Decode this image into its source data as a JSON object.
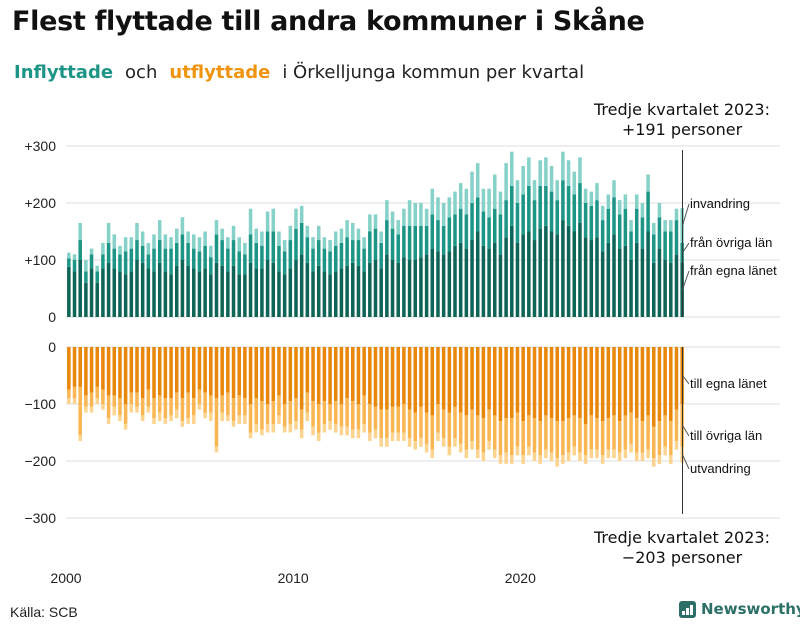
{
  "title": "Flest flyttade till andra kommuner i Skåne",
  "subtitle": {
    "in_word": "Inflyttade",
    "and": "och",
    "out_word": "utflyttade",
    "rest": "i Örkelljunga  kommun  per  kvartal"
  },
  "source": "Källa: SCB",
  "brand": "Newsworthy",
  "colors": {
    "in_own": "#0e6457",
    "in_other": "#1d9586",
    "in_immig": "#86d1c8",
    "out_own": "#e8870a",
    "out_other": "#f9b653",
    "out_emig": "#fcd490",
    "grid": "#dddddd"
  },
  "chart_data": {
    "type": "bar",
    "stacked": true,
    "diverging": true,
    "x_start": "2000 Q1",
    "x_ticks": [
      "2000",
      "2010",
      "2020"
    ],
    "top_panel": {
      "y_ticks": [
        "+300",
        "+200",
        "+100",
        "0"
      ],
      "ylim": [
        0,
        300
      ],
      "annotation": [
        "Tredje kvartalet 2023:",
        "+191 personer"
      ],
      "series": [
        {
          "name": "från egna länet",
          "values": [
            88,
            80,
            100,
            60,
            85,
            60,
            85,
            95,
            85,
            80,
            75,
            80,
            100,
            95,
            85,
            80,
            95,
            80,
            75,
            90,
            100,
            90,
            85,
            80,
            85,
            75,
            95,
            90,
            80,
            90,
            75,
            75,
            95,
            85,
            85,
            100,
            95,
            80,
            75,
            85,
            100,
            110,
            95,
            80,
            90,
            80,
            75,
            80,
            85,
            90,
            95,
            90,
            80,
            95,
            100,
            85,
            110,
            100,
            95,
            105,
            100,
            100,
            105,
            110,
            120,
            115,
            110,
            115,
            125,
            130,
            120,
            135,
            150,
            125,
            120,
            130,
            110,
            140,
            160,
            130,
            145,
            150,
            135,
            155,
            160,
            150,
            145,
            170,
            160,
            150,
            165,
            140,
            135,
            140,
            115,
            130,
            145,
            120,
            125,
            100,
            130,
            120,
            150,
            95,
            120,
            100,
            95,
            110,
            96
          ]
        },
        {
          "name": "från övriga län",
          "values": [
            15,
            20,
            35,
            20,
            25,
            20,
            25,
            35,
            35,
            30,
            40,
            40,
            35,
            30,
            25,
            40,
            40,
            40,
            45,
            40,
            45,
            40,
            35,
            35,
            40,
            30,
            50,
            45,
            40,
            45,
            40,
            35,
            50,
            45,
            40,
            50,
            55,
            45,
            40,
            50,
            55,
            55,
            45,
            40,
            45,
            40,
            40,
            45,
            45,
            50,
            40,
            45,
            40,
            55,
            55,
            45,
            60,
            55,
            50,
            55,
            60,
            60,
            55,
            50,
            60,
            55,
            50,
            60,
            55,
            60,
            60,
            65,
            60,
            60,
            55,
            60,
            70,
            65,
            70,
            70,
            70,
            80,
            70,
            75,
            70,
            70,
            60,
            70,
            70,
            65,
            70,
            60,
            60,
            65,
            55,
            60,
            65,
            60,
            65,
            50,
            60,
            55,
            70,
            50,
            55,
            50,
            55,
            60,
            34
          ]
        },
        {
          "name": "invandring",
          "values": [
            10,
            10,
            30,
            20,
            10,
            10,
            20,
            35,
            25,
            15,
            25,
            20,
            30,
            25,
            20,
            25,
            35,
            25,
            20,
            25,
            30,
            20,
            25,
            25,
            25,
            20,
            25,
            20,
            20,
            25,
            25,
            20,
            45,
            25,
            25,
            35,
            40,
            25,
            20,
            25,
            35,
            30,
            20,
            20,
            25,
            20,
            20,
            25,
            25,
            30,
            30,
            20,
            20,
            30,
            25,
            20,
            35,
            30,
            25,
            30,
            45,
            40,
            40,
            30,
            45,
            40,
            40,
            35,
            40,
            45,
            45,
            55,
            60,
            40,
            50,
            60,
            40,
            65,
            60,
            40,
            50,
            50,
            35,
            45,
            50,
            45,
            35,
            50,
            45,
            40,
            45,
            25,
            25,
            30,
            25,
            25,
            30,
            25,
            25,
            20,
            25,
            25,
            30,
            20,
            25,
            20,
            20,
            20,
            61
          ]
        }
      ]
    },
    "bottom_panel": {
      "y_ticks": [
        "0",
        "−100",
        "−200",
        "−300"
      ],
      "ylim": [
        -300,
        0
      ],
      "annotation": [
        "Tredje kvartalet 2023:",
        "−203 personer"
      ],
      "series": [
        {
          "name": "till egna länet",
          "values": [
            -75,
            -70,
            -70,
            -85,
            -80,
            -70,
            -75,
            -85,
            -85,
            -90,
            -100,
            -80,
            -80,
            -90,
            -75,
            -90,
            -85,
            -90,
            -90,
            -80,
            -90,
            -80,
            -90,
            -75,
            -80,
            -85,
            -90,
            -85,
            -80,
            -90,
            -85,
            -90,
            -100,
            -90,
            -95,
            -100,
            -95,
            -85,
            -100,
            -95,
            -90,
            -110,
            -80,
            -95,
            -100,
            -95,
            -100,
            -95,
            -100,
            -90,
            -95,
            -100,
            -85,
            -100,
            -105,
            -110,
            -110,
            -105,
            -105,
            -100,
            -110,
            -115,
            -105,
            -115,
            -120,
            -100,
            -110,
            -115,
            -105,
            -115,
            -120,
            -110,
            -120,
            -125,
            -110,
            -120,
            -130,
            -125,
            -125,
            -115,
            -130,
            -120,
            -125,
            -130,
            -120,
            -125,
            -130,
            -130,
            -125,
            -120,
            -125,
            -135,
            -120,
            -125,
            -130,
            -125,
            -120,
            -130,
            -120,
            -115,
            -125,
            -130,
            -120,
            -140,
            -130,
            -120,
            -130,
            -110,
            -100
          ]
        },
        {
          "name": "till övriga län",
          "values": [
            -15,
            -20,
            -85,
            -20,
            -25,
            -20,
            -25,
            -40,
            -20,
            -30,
            -35,
            -20,
            -25,
            -30,
            -30,
            -35,
            -30,
            -35,
            -30,
            -30,
            -40,
            -45,
            -30,
            -25,
            -35,
            -30,
            -85,
            -30,
            -40,
            -40,
            -35,
            -30,
            -50,
            -45,
            -50,
            -35,
            -40,
            -35,
            -40,
            -40,
            -40,
            -35,
            -35,
            -45,
            -50,
            -40,
            -30,
            -40,
            -40,
            -50,
            -50,
            -45,
            -50,
            -50,
            -40,
            -50,
            -50,
            -45,
            -45,
            -50,
            -50,
            -50,
            -55,
            -55,
            -60,
            -50,
            -50,
            -60,
            -55,
            -55,
            -60,
            -55,
            -60,
            -60,
            -55,
            -60,
            -60,
            -60,
            -65,
            -60,
            -60,
            -55,
            -60,
            -60,
            -60,
            -60,
            -65,
            -60,
            -60,
            -55,
            -60,
            -55,
            -60,
            -55,
            -60,
            -55,
            -60,
            -55,
            -60,
            -55,
            -60,
            -55,
            -60,
            -55,
            -60,
            -55,
            -60,
            -55,
            -75
          ]
        },
        {
          "name": "utvandring",
          "values": [
            -10,
            -10,
            -10,
            -10,
            -10,
            -10,
            -10,
            -10,
            -15,
            -10,
            -10,
            -15,
            -10,
            -10,
            -10,
            -10,
            -15,
            -10,
            -10,
            -15,
            -10,
            -10,
            -15,
            -10,
            -10,
            -15,
            -10,
            -15,
            -10,
            -10,
            -15,
            -15,
            -10,
            -15,
            -10,
            -15,
            -15,
            -15,
            -10,
            -15,
            -15,
            -15,
            -15,
            -15,
            -15,
            -15,
            -15,
            -15,
            -15,
            -15,
            -15,
            -15,
            -15,
            -15,
            -15,
            -15,
            -15,
            -15,
            -15,
            -15,
            -15,
            -15,
            -15,
            -15,
            -15,
            -15,
            -15,
            -15,
            -15,
            -15,
            -15,
            -15,
            -15,
            -15,
            -15,
            -15,
            -15,
            -20,
            -15,
            -15,
            -15,
            -15,
            -15,
            -15,
            -15,
            -15,
            -15,
            -15,
            -15,
            -15,
            -15,
            -15,
            -15,
            -15,
            -15,
            -15,
            -15,
            -15,
            -15,
            -15,
            -15,
            -15,
            -15,
            -15,
            -15,
            -15,
            -15,
            -15,
            -28
          ]
        }
      ]
    }
  }
}
